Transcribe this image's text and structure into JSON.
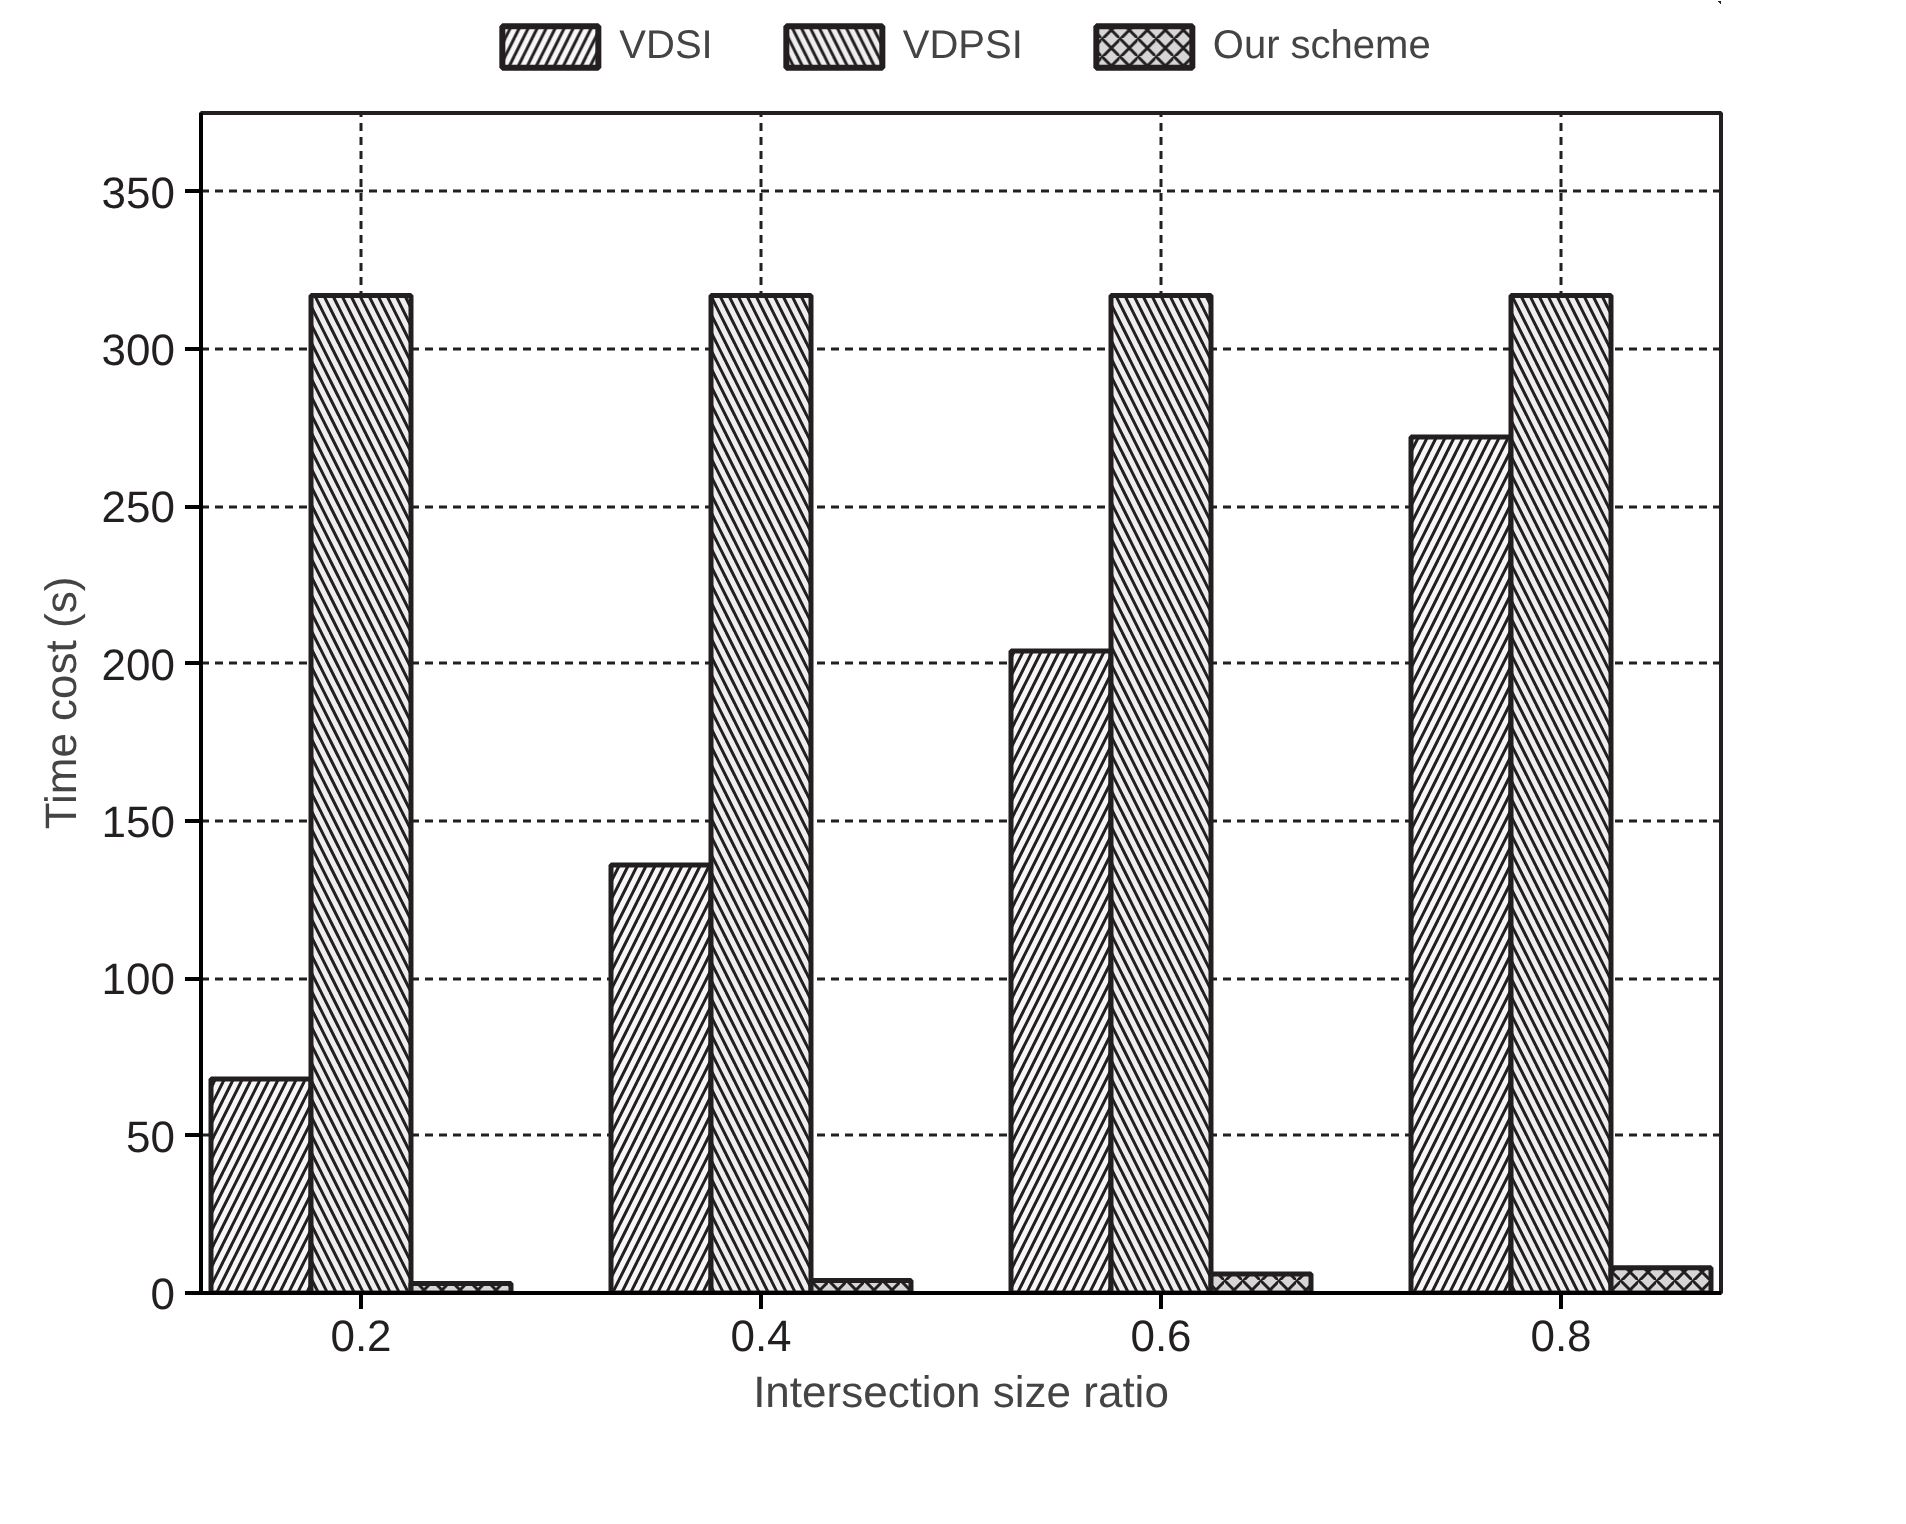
{
  "chart_data": {
    "type": "bar",
    "xlabel": "Intersection size ratio",
    "ylabel": "Time cost (s)",
    "x": [
      0.2,
      0.4,
      0.6,
      0.8
    ],
    "series": [
      {
        "name": "VDSI",
        "color": "#f7f7f7",
        "values": [
          68,
          136,
          204,
          272
        ]
      },
      {
        "name": "VDPSI",
        "color": "#eeeeee",
        "values": [
          317,
          317,
          317,
          317
        ]
      },
      {
        "name": "Our scheme",
        "color": "#d6d6d6",
        "values": [
          3,
          4,
          6,
          8
        ]
      }
    ],
    "xlim": [
      0.12,
      0.88
    ],
    "xticks": [
      0.2,
      0.4,
      0.6,
      0.8
    ],
    "ylim": [
      0,
      375
    ],
    "yticks": [
      0,
      50,
      100,
      150,
      200,
      250,
      300,
      350
    ],
    "grid": true,
    "legend": "top"
  }
}
